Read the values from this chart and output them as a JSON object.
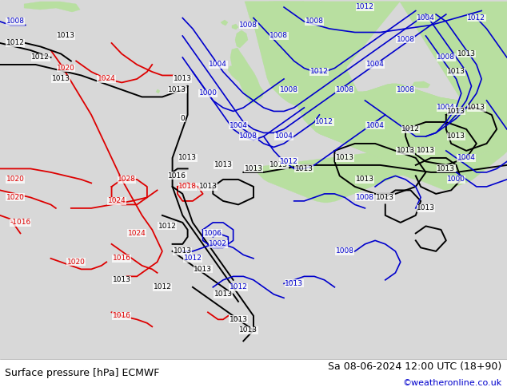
{
  "bottom_left_text": "Surface pressure [hPa] ECMWF",
  "bottom_right_text": "Sa 08-06-2024 12:00 UTC (18+90)",
  "bottom_credit": "©weatheronline.co.uk",
  "bg_color": "#d8d8d8",
  "land_color": "#b8dfa0",
  "coast_color": "#808080",
  "bottom_text_color": "#000000",
  "credit_color": "#0000cc",
  "red_color": "#dd0000",
  "blue_color": "#0000cc",
  "black_color": "#000000",
  "fig_width": 6.34,
  "fig_height": 4.9,
  "dpi": 100
}
